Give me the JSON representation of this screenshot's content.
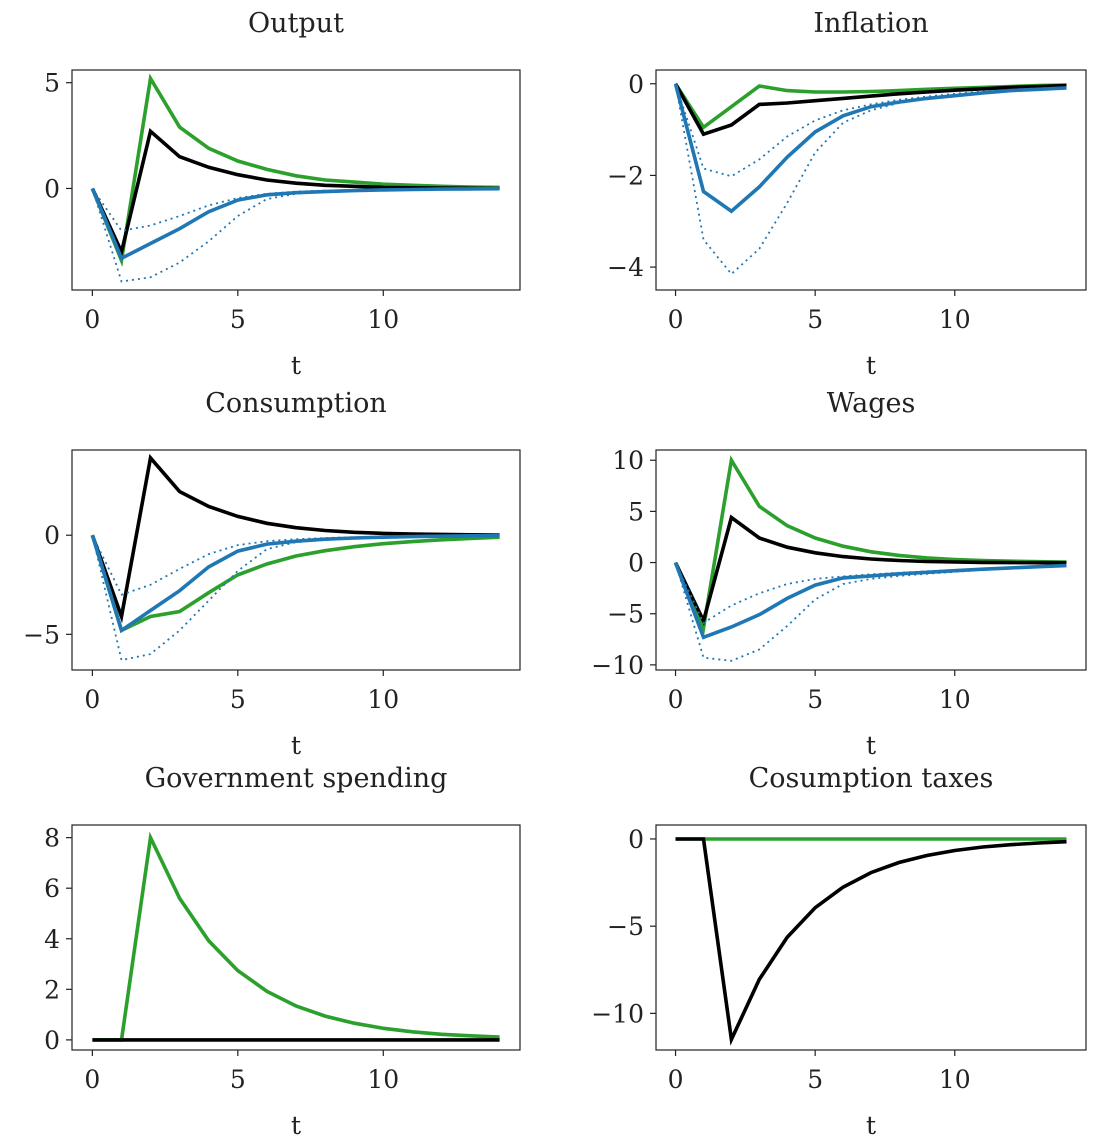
{
  "chart_data": [
    {
      "type": "line",
      "title": "Output",
      "xlabel": "t",
      "ylabel": "",
      "xlim": [
        -0.7,
        14.7
      ],
      "ylim": [
        -4.8,
        5.6
      ],
      "xticks": [
        0,
        5,
        10
      ],
      "yticks": [
        0,
        5
      ],
      "x": [
        0,
        1,
        2,
        3,
        4,
        5,
        6,
        7,
        8,
        9,
        10,
        11,
        12,
        13,
        14
      ],
      "series": [
        {
          "color": "#2ca02c",
          "style": "solid",
          "values": [
            0,
            -3.4,
            5.2,
            2.9,
            1.9,
            1.3,
            0.9,
            0.6,
            0.4,
            0.3,
            0.2,
            0.15,
            0.1,
            0.07,
            0.05
          ]
        },
        {
          "color": "#000000",
          "style": "solid",
          "values": [
            0,
            -3.0,
            2.7,
            1.5,
            1.0,
            0.65,
            0.4,
            0.25,
            0.15,
            0.1,
            0.05,
            0.03,
            0.02,
            0.01,
            0.0
          ]
        },
        {
          "color": "#1f77b4",
          "style": "solid",
          "values": [
            0,
            -3.3,
            -2.6,
            -1.9,
            -1.1,
            -0.55,
            -0.3,
            -0.2,
            -0.15,
            -0.1,
            -0.07,
            -0.05,
            -0.03,
            -0.02,
            -0.01
          ]
        },
        {
          "color": "#1f77b4",
          "style": "dotted",
          "values": [
            0,
            -2.0,
            -1.75,
            -1.3,
            -0.8,
            -0.45,
            -0.25,
            -0.15,
            -0.1,
            -0.07,
            -0.05,
            -0.03,
            -0.02,
            -0.01,
            0.0
          ]
        },
        {
          "color": "#1f77b4",
          "style": "dotted",
          "values": [
            0,
            -4.4,
            -4.2,
            -3.5,
            -2.5,
            -1.3,
            -0.5,
            -0.25,
            -0.15,
            -0.1,
            -0.07,
            -0.05,
            -0.03,
            -0.02,
            -0.01
          ]
        }
      ]
    },
    {
      "type": "line",
      "title": "Inflation",
      "xlabel": "t",
      "ylabel": "",
      "xlim": [
        -0.7,
        14.7
      ],
      "ylim": [
        -4.5,
        0.3
      ],
      "xticks": [
        0,
        5,
        10
      ],
      "yticks": [
        0,
        -2,
        -4
      ],
      "x": [
        0,
        1,
        2,
        3,
        4,
        5,
        6,
        7,
        8,
        9,
        10,
        11,
        12,
        13,
        14
      ],
      "series": [
        {
          "color": "#2ca02c",
          "style": "solid",
          "values": [
            0,
            -0.95,
            -0.5,
            -0.05,
            -0.15,
            -0.18,
            -0.18,
            -0.17,
            -0.15,
            -0.12,
            -0.1,
            -0.08,
            -0.06,
            -0.04,
            -0.03
          ]
        },
        {
          "color": "#000000",
          "style": "solid",
          "values": [
            0,
            -1.1,
            -0.9,
            -0.45,
            -0.42,
            -0.37,
            -0.32,
            -0.27,
            -0.22,
            -0.18,
            -0.14,
            -0.11,
            -0.08,
            -0.06,
            -0.04
          ]
        },
        {
          "color": "#1f77b4",
          "style": "solid",
          "values": [
            0,
            -2.35,
            -2.78,
            -2.25,
            -1.6,
            -1.05,
            -0.7,
            -0.5,
            -0.4,
            -0.32,
            -0.26,
            -0.2,
            -0.15,
            -0.12,
            -0.09
          ]
        },
        {
          "color": "#1f77b4",
          "style": "dotted",
          "values": [
            0,
            -1.85,
            -2.02,
            -1.65,
            -1.15,
            -0.8,
            -0.58,
            -0.45,
            -0.35,
            -0.28,
            -0.22,
            -0.17,
            -0.13,
            -0.1,
            -0.08
          ]
        },
        {
          "color": "#1f77b4",
          "style": "dotted",
          "values": [
            0,
            -3.4,
            -4.15,
            -3.6,
            -2.6,
            -1.5,
            -0.85,
            -0.58,
            -0.42,
            -0.33,
            -0.27,
            -0.21,
            -0.16,
            -0.12,
            -0.09
          ]
        }
      ]
    },
    {
      "type": "line",
      "title": "Consumption",
      "xlabel": "t",
      "ylabel": "",
      "xlim": [
        -0.7,
        14.7
      ],
      "ylim": [
        -6.8,
        4.3
      ],
      "xticks": [
        0,
        5,
        10
      ],
      "yticks": [
        0,
        -5
      ],
      "x": [
        0,
        1,
        2,
        3,
        4,
        5,
        6,
        7,
        8,
        9,
        10,
        11,
        12,
        13,
        14
      ],
      "series": [
        {
          "color": "#000000",
          "style": "solid",
          "values": [
            0,
            -4.1,
            3.9,
            2.2,
            1.45,
            0.95,
            0.6,
            0.38,
            0.24,
            0.15,
            0.09,
            0.06,
            0.04,
            0.02,
            0.01
          ]
        },
        {
          "color": "#2ca02c",
          "style": "solid",
          "values": [
            0,
            -4.8,
            -4.1,
            -3.85,
            -2.9,
            -2.0,
            -1.45,
            -1.05,
            -0.78,
            -0.58,
            -0.43,
            -0.32,
            -0.23,
            -0.16,
            -0.1
          ]
        },
        {
          "color": "#1f77b4",
          "style": "solid",
          "values": [
            0,
            -4.8,
            -3.8,
            -2.8,
            -1.6,
            -0.8,
            -0.45,
            -0.3,
            -0.2,
            -0.14,
            -0.1,
            -0.07,
            -0.05,
            -0.03,
            -0.02
          ]
        },
        {
          "color": "#1f77b4",
          "style": "dotted",
          "values": [
            0,
            -3.0,
            -2.5,
            -1.7,
            -0.95,
            -0.5,
            -0.3,
            -0.2,
            -0.14,
            -0.1,
            -0.07,
            -0.05,
            -0.03,
            -0.02,
            -0.01
          ]
        },
        {
          "color": "#1f77b4",
          "style": "dotted",
          "values": [
            0,
            -6.3,
            -6.0,
            -4.8,
            -3.3,
            -1.8,
            -0.7,
            -0.35,
            -0.22,
            -0.15,
            -0.1,
            -0.07,
            -0.05,
            -0.03,
            -0.02
          ]
        }
      ]
    },
    {
      "type": "line",
      "title": "Wages",
      "xlabel": "t",
      "ylabel": "",
      "xlim": [
        -0.7,
        14.7
      ],
      "ylim": [
        -10.5,
        11.0
      ],
      "xticks": [
        0,
        5,
        10
      ],
      "yticks": [
        10,
        5,
        0,
        -5,
        -10
      ],
      "x": [
        0,
        1,
        2,
        3,
        4,
        5,
        6,
        7,
        8,
        9,
        10,
        11,
        12,
        13,
        14
      ],
      "series": [
        {
          "color": "#2ca02c",
          "style": "solid",
          "values": [
            0,
            -6.4,
            10.0,
            5.5,
            3.6,
            2.4,
            1.6,
            1.05,
            0.7,
            0.46,
            0.3,
            0.2,
            0.13,
            0.08,
            0.05
          ]
        },
        {
          "color": "#000000",
          "style": "solid",
          "values": [
            0,
            -5.7,
            4.4,
            2.4,
            1.5,
            0.95,
            0.58,
            0.35,
            0.2,
            0.1,
            0.05,
            0.02,
            0.0,
            -0.01,
            -0.02
          ]
        },
        {
          "color": "#1f77b4",
          "style": "solid",
          "values": [
            0,
            -7.3,
            -6.3,
            -5.1,
            -3.5,
            -2.2,
            -1.5,
            -1.3,
            -1.1,
            -0.95,
            -0.8,
            -0.65,
            -0.52,
            -0.4,
            -0.3
          ]
        },
        {
          "color": "#1f77b4",
          "style": "dotted",
          "values": [
            0,
            -5.9,
            -4.2,
            -3.0,
            -2.1,
            -1.6,
            -1.35,
            -1.15,
            -1.0,
            -0.85,
            -0.72,
            -0.6,
            -0.48,
            -0.37,
            -0.28
          ]
        },
        {
          "color": "#1f77b4",
          "style": "dotted",
          "values": [
            0,
            -9.3,
            -9.6,
            -8.5,
            -6.2,
            -3.6,
            -2.1,
            -1.6,
            -1.3,
            -1.1,
            -0.9,
            -0.72,
            -0.57,
            -0.44,
            -0.33
          ]
        }
      ]
    },
    {
      "type": "line",
      "title": "Government spending",
      "xlabel": "t",
      "ylabel": "",
      "xlim": [
        -0.7,
        14.7
      ],
      "ylim": [
        -0.4,
        8.5
      ],
      "xticks": [
        0,
        5,
        10
      ],
      "yticks": [
        8,
        6,
        4,
        2,
        0
      ],
      "x": [
        0,
        1,
        2,
        3,
        4,
        5,
        6,
        7,
        8,
        9,
        10,
        11,
        12,
        13,
        14
      ],
      "series": [
        {
          "color": "#2ca02c",
          "style": "solid",
          "values": [
            0,
            0,
            8.0,
            5.6,
            3.92,
            2.74,
            1.92,
            1.34,
            0.94,
            0.66,
            0.46,
            0.32,
            0.22,
            0.16,
            0.11
          ]
        },
        {
          "color": "#000000",
          "style": "solid",
          "values": [
            0,
            0,
            0,
            0,
            0,
            0,
            0,
            0,
            0,
            0,
            0,
            0,
            0,
            0,
            0
          ]
        }
      ]
    },
    {
      "type": "line",
      "title": "Cosumption taxes",
      "xlabel": "t",
      "ylabel": "",
      "xlim": [
        -0.7,
        14.7
      ],
      "ylim": [
        -12.1,
        0.8
      ],
      "xticks": [
        0,
        5,
        10
      ],
      "yticks": [
        0,
        -5,
        -10
      ],
      "x": [
        0,
        1,
        2,
        3,
        4,
        5,
        6,
        7,
        8,
        9,
        10,
        11,
        12,
        13,
        14
      ],
      "series": [
        {
          "color": "#2ca02c",
          "style": "solid",
          "values": [
            0,
            0,
            0,
            0,
            0,
            0,
            0,
            0,
            0,
            0,
            0,
            0,
            0,
            0,
            0
          ]
        },
        {
          "color": "#000000",
          "style": "solid",
          "values": [
            0,
            0,
            -11.5,
            -8.05,
            -5.64,
            -3.94,
            -2.76,
            -1.93,
            -1.35,
            -0.95,
            -0.66,
            -0.46,
            -0.33,
            -0.23,
            -0.16
          ]
        }
      ]
    }
  ]
}
